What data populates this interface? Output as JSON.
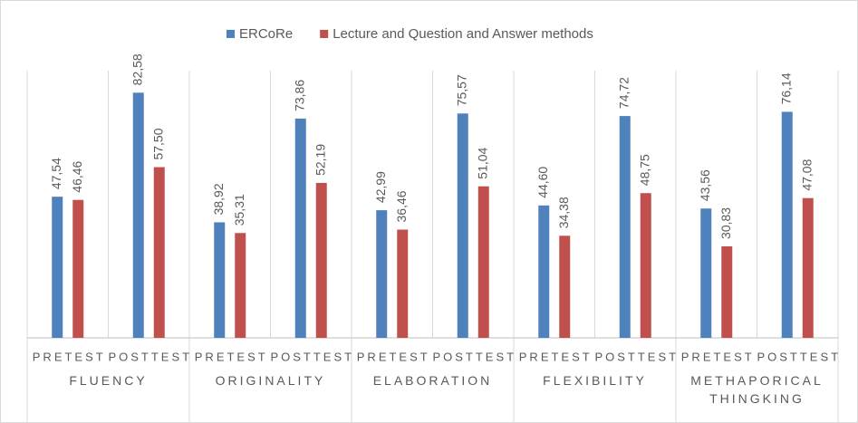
{
  "chart_data": {
    "type": "bar",
    "groups": [
      "FLUENCY",
      "ORIGINALITY",
      "ELABORATION",
      "FLEXIBILITY",
      "METHAPORICAL THINGKING"
    ],
    "categories": [
      "PRETEST",
      "POSTTEST",
      "PRETEST",
      "POSTTEST",
      "PRETEST",
      "POSTTEST",
      "PRETEST",
      "POSTTEST",
      "PRETEST",
      "POSTTEST"
    ],
    "series": [
      {
        "name": "ERCoRe",
        "color": "#4f81bd",
        "values": [
          47.54,
          82.58,
          38.92,
          73.86,
          42.99,
          75.57,
          44.6,
          74.72,
          43.56,
          76.14
        ],
        "value_labels": [
          "47,54",
          "82,58",
          "38,92",
          "73,86",
          "42,99",
          "75,57",
          "44,60",
          "74,72",
          "43,56",
          "76,14"
        ]
      },
      {
        "name": "Lecture and Question and Answer methods",
        "color": "#c0504d",
        "values": [
          46.46,
          57.5,
          35.31,
          52.19,
          36.46,
          51.04,
          34.38,
          48.75,
          30.83,
          47.08
        ],
        "value_labels": [
          "46,46",
          "57,50",
          "35,31",
          "52,19",
          "36,46",
          "51,04",
          "34,38",
          "48,75",
          "30,83",
          "47,08"
        ]
      }
    ],
    "ylim": [
      0,
      90
    ],
    "legend": "top"
  }
}
